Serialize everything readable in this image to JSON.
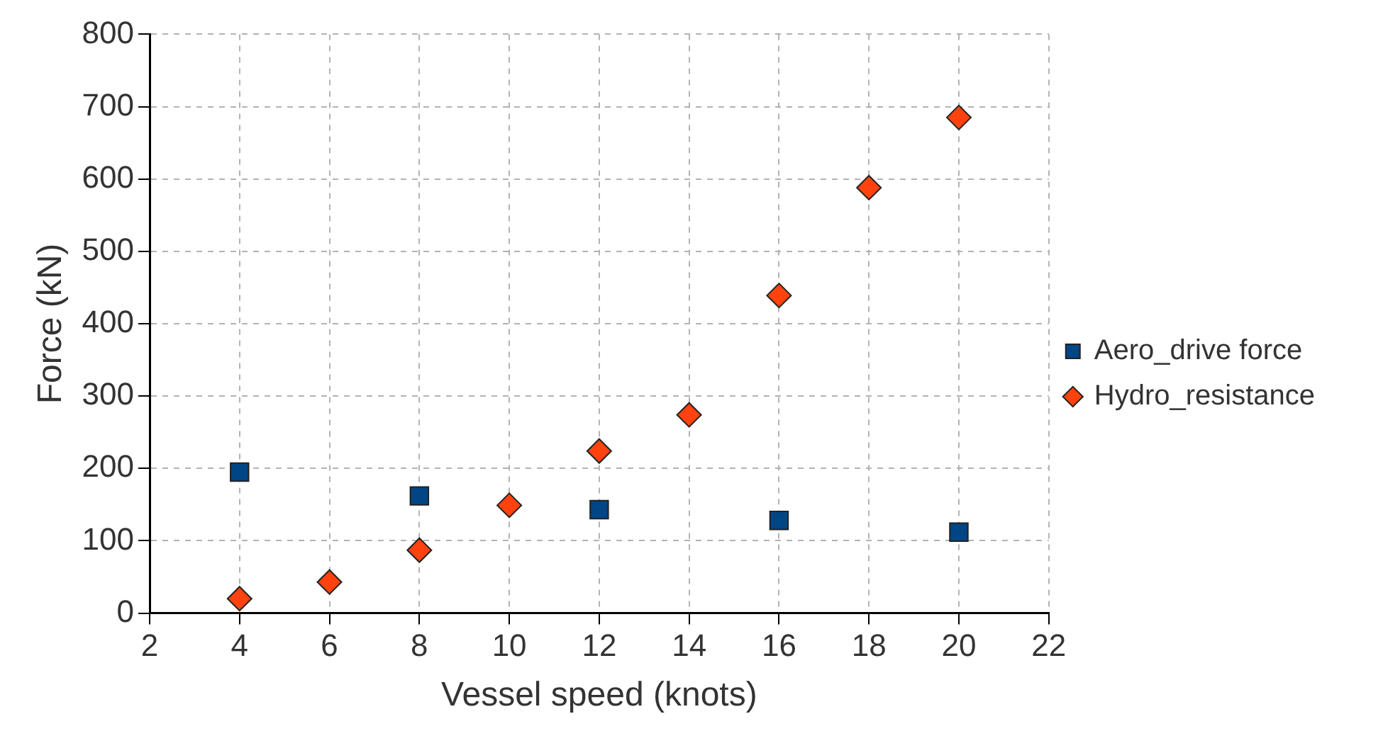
{
  "chart_data": {
    "type": "scatter",
    "xlabel": "Vessel speed (knots)",
    "ylabel": "Force (kN)",
    "series": [
      {
        "name": "Aero_drive force",
        "color": "#004586",
        "marker": "square",
        "x": [
          4,
          8,
          12,
          16,
          20
        ],
        "values": [
          195,
          162,
          143,
          128,
          112
        ]
      },
      {
        "name": "Hydro_resistance",
        "color": "#ff420e",
        "marker": "diamond",
        "x": [
          4,
          6,
          8,
          10,
          12,
          14,
          16,
          18,
          20
        ],
        "values": [
          20,
          43,
          87,
          149,
          224,
          274,
          439,
          588,
          685
        ]
      }
    ],
    "xlim": [
      2,
      22
    ],
    "xticks": [
      2,
      4,
      6,
      8,
      10,
      12,
      14,
      16,
      18,
      20,
      22
    ],
    "ylim": [
      0,
      800
    ],
    "yticks": [
      0,
      100,
      200,
      300,
      400,
      500,
      600,
      700,
      800
    ],
    "grid": true,
    "legend": "right"
  }
}
